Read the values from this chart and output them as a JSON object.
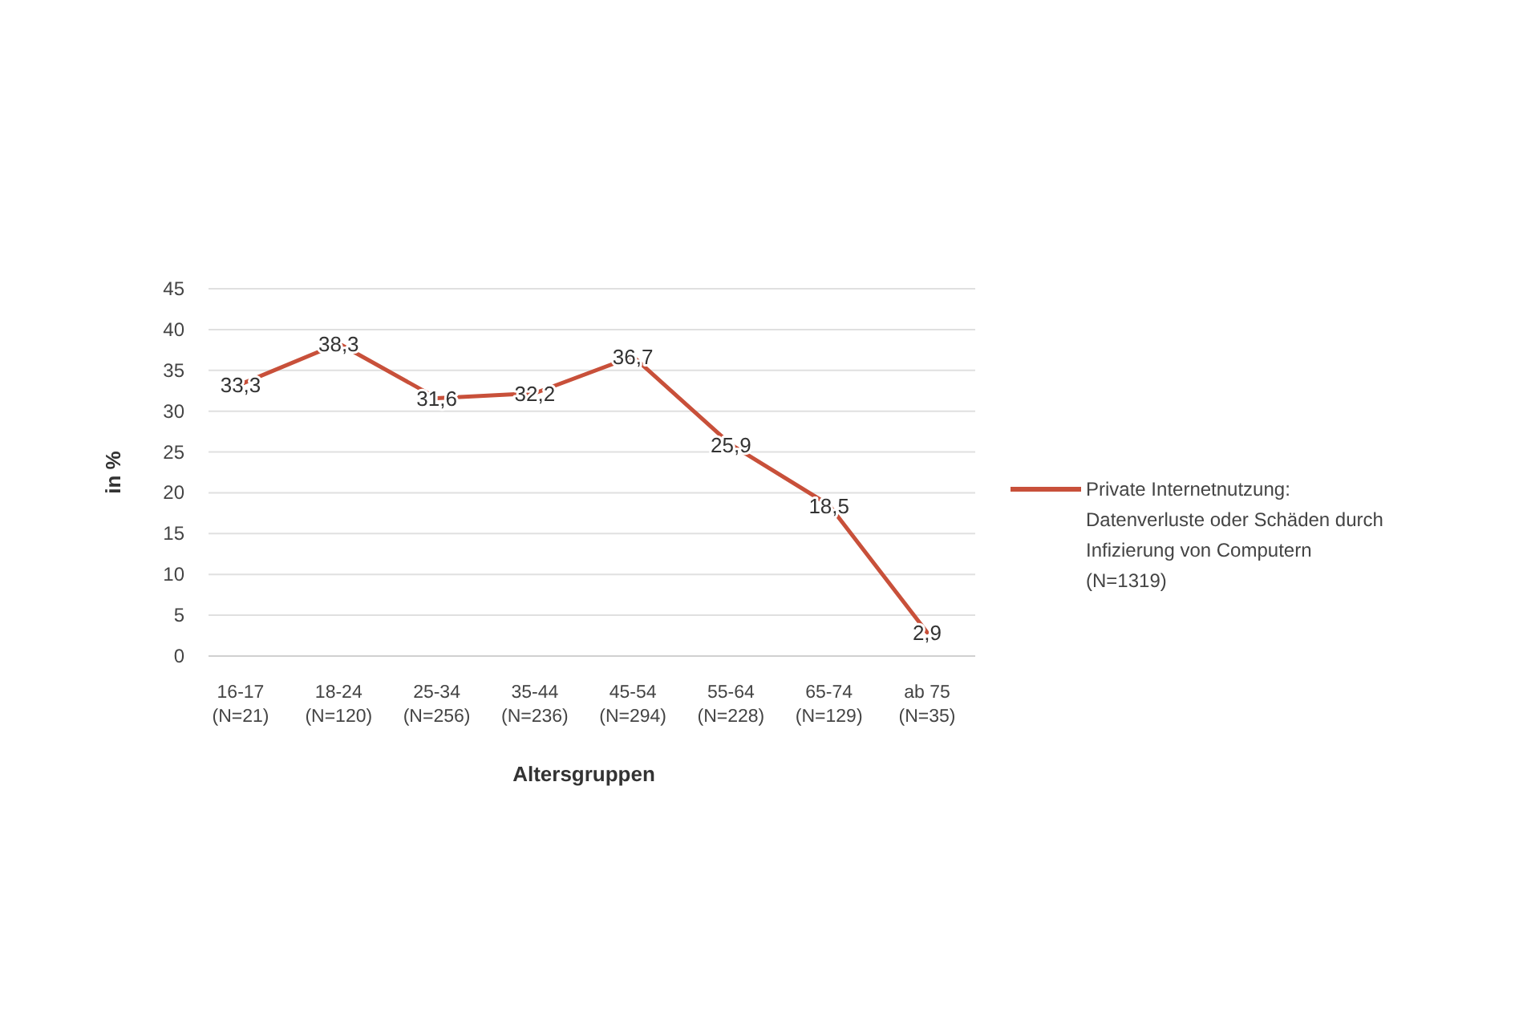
{
  "chart_data": {
    "type": "line",
    "xlabel": "Altersgruppen",
    "ylabel": "in %",
    "categories": [
      "16-17\n(N=21)",
      "18-24\n(N=120)",
      "25-34\n(N=256)",
      "35-44\n(N=236)",
      "45-54\n(N=294)",
      "55-64\n(N=228)",
      "65-74\n(N=129)",
      "ab 75\n(N=35)"
    ],
    "series": [
      {
        "name": "Private Internetnutzung: Datenverluste oder Schäden durch Infizierung von Computern (N=1319)",
        "color": "#c8503a",
        "values": [
          33.3,
          38.3,
          31.6,
          32.2,
          36.7,
          25.9,
          18.5,
          2.9
        ],
        "value_labels": [
          "33,3",
          "38,3",
          "31,6",
          "32,2",
          "36,7",
          "25,9",
          "18,5",
          "2,9"
        ]
      }
    ],
    "ylim": [
      0,
      45
    ],
    "yticks": [
      0,
      5,
      10,
      15,
      20,
      25,
      30,
      35,
      40,
      45
    ],
    "grid": "y",
    "legend": "right",
    "marker": "none",
    "line_style": "solid"
  }
}
